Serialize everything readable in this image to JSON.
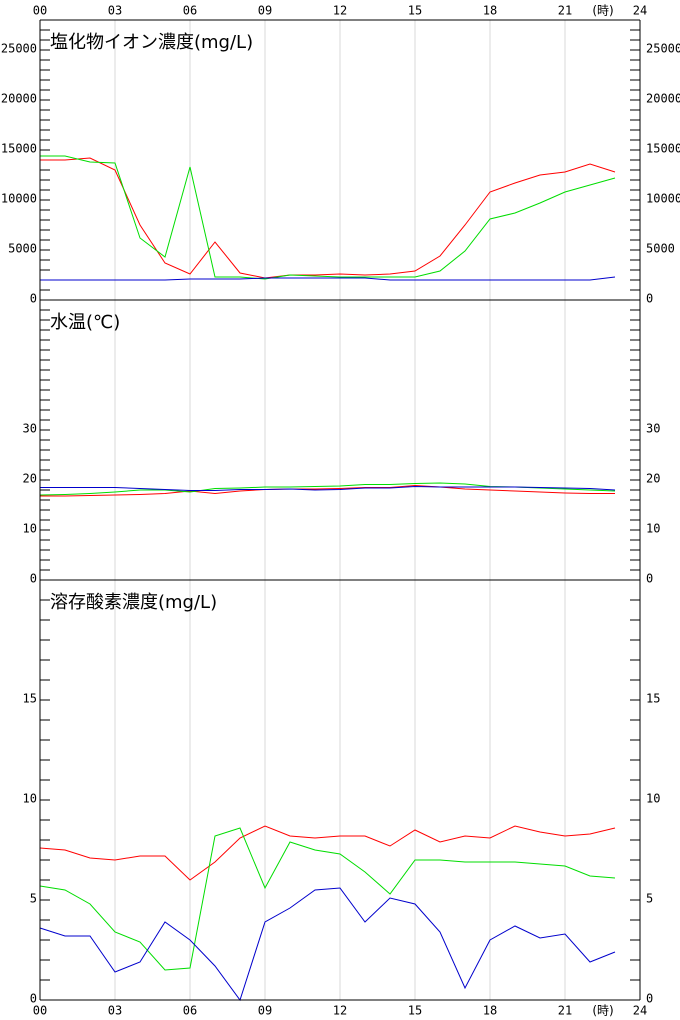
{
  "x_axis": {
    "x": [
      0,
      1,
      2,
      3,
      4,
      5,
      6,
      7,
      8,
      9,
      10,
      11,
      12,
      13,
      14,
      15,
      16,
      17,
      18,
      19,
      20,
      21,
      22,
      23
    ],
    "xlim": [
      0,
      24
    ],
    "xticks": [
      {
        "value": 0,
        "label": "00"
      },
      {
        "value": 3,
        "label": "03"
      },
      {
        "value": 6,
        "label": "06"
      },
      {
        "value": 9,
        "label": "09"
      },
      12,
      15,
      18,
      21,
      24
    ],
    "unit_label": "(時)"
  },
  "chart_data": [
    {
      "type": "line",
      "title": "塩化物イオン濃度(mg/L)",
      "ylim": [
        0,
        28000
      ],
      "yticks": [
        0,
        5000,
        10000,
        15000,
        20000,
        25000
      ],
      "minor_tick_step": 1000,
      "grid": true,
      "series": [
        {
          "color": "#ff0000",
          "values": [
            14000,
            14000,
            14200,
            13000,
            7500,
            3700,
            2600,
            5800,
            2700,
            2200,
            2500,
            2500,
            2600,
            2500,
            2600,
            2900,
            4400,
            7500,
            10800,
            11700,
            12500,
            12800,
            13600,
            12800
          ]
        },
        {
          "color": "#00dd00",
          "values": [
            14400,
            14400,
            13800,
            13700,
            6200,
            4300,
            13300,
            2300,
            2300,
            2100,
            2500,
            2400,
            2300,
            2300,
            2300,
            2300,
            2900,
            4900,
            8100,
            8700,
            9700,
            10800,
            11500,
            12200
          ]
        },
        {
          "color": "#0000cc",
          "values": [
            2000,
            2000,
            2000,
            2000,
            2000,
            2000,
            2100,
            2100,
            2100,
            2200,
            2200,
            2200,
            2200,
            2200,
            2000,
            2000,
            2000,
            2000,
            2000,
            2000,
            2000,
            2000,
            2000,
            2300
          ]
        }
      ]
    },
    {
      "type": "line",
      "title": "水温(℃)",
      "ylim": [
        0,
        56
      ],
      "yticks": [
        0,
        10,
        20,
        30
      ],
      "minor_tick_step": 2,
      "grid": true,
      "series": [
        {
          "color": "#ff0000",
          "values": [
            16.8,
            16.8,
            16.9,
            17.0,
            17.1,
            17.3,
            17.8,
            17.3,
            17.8,
            18.1,
            18.2,
            18.2,
            18.3,
            18.5,
            18.5,
            18.9,
            18.6,
            18.2,
            18.0,
            17.8,
            17.6,
            17.4,
            17.3,
            17.3
          ]
        },
        {
          "color": "#00dd00",
          "values": [
            17.0,
            17.1,
            17.3,
            17.6,
            18.0,
            18.0,
            17.6,
            18.3,
            18.4,
            18.6,
            18.6,
            18.7,
            18.8,
            19.1,
            19.1,
            19.3,
            19.4,
            19.2,
            18.7,
            18.6,
            18.4,
            18.2,
            18.0,
            17.8
          ]
        },
        {
          "color": "#0000cc",
          "values": [
            18.5,
            18.5,
            18.5,
            18.5,
            18.3,
            18.1,
            17.9,
            17.9,
            18.1,
            18.1,
            18.2,
            18.0,
            18.1,
            18.4,
            18.4,
            18.7,
            18.6,
            18.6,
            18.6,
            18.6,
            18.5,
            18.4,
            18.3,
            18.0
          ]
        }
      ]
    },
    {
      "type": "line",
      "title": "溶存酸素濃度(mg/L)",
      "ylim": [
        0,
        21
      ],
      "yticks": [
        0,
        5,
        10,
        15
      ],
      "minor_tick_step": 1,
      "grid": true,
      "series": [
        {
          "color": "#ff0000",
          "values": [
            7.6,
            7.5,
            7.1,
            7.0,
            7.2,
            7.2,
            6.0,
            6.9,
            8.1,
            8.7,
            8.2,
            8.1,
            8.2,
            8.2,
            7.7,
            8.5,
            7.9,
            8.2,
            8.1,
            8.7,
            8.4,
            8.2,
            8.3,
            8.6
          ]
        },
        {
          "color": "#00dd00",
          "values": [
            5.7,
            5.5,
            4.8,
            3.4,
            2.9,
            1.5,
            1.6,
            8.2,
            8.6,
            5.6,
            7.9,
            7.5,
            7.3,
            6.4,
            5.3,
            7.0,
            7.0,
            6.9,
            6.9,
            6.9,
            6.8,
            6.7,
            6.2,
            6.1
          ]
        },
        {
          "color": "#0000cc",
          "values": [
            3.6,
            3.2,
            3.2,
            1.4,
            1.9,
            3.9,
            3.0,
            1.7,
            0.0,
            3.9,
            4.6,
            5.5,
            5.6,
            3.9,
            5.1,
            4.8,
            3.4,
            0.6,
            3.0,
            3.7,
            3.1,
            3.3,
            1.9,
            2.4
          ]
        }
      ]
    }
  ]
}
